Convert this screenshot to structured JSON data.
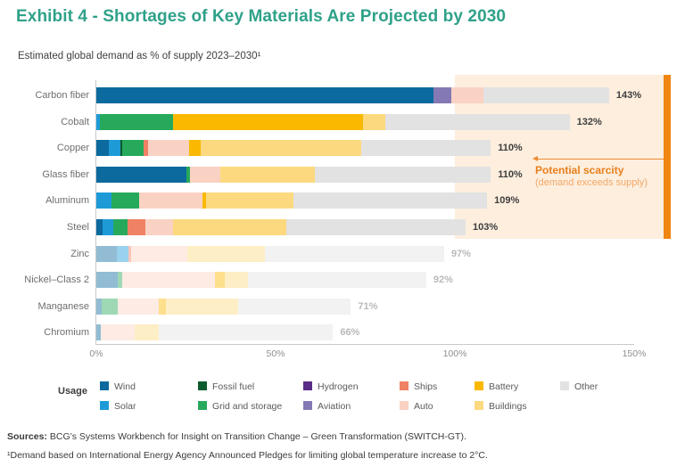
{
  "header": {
    "title": "Exhibit 4 - Shortages of Key Materials Are Projected by 2030",
    "subtitle": "Estimated global demand as % of supply 2023–2030¹"
  },
  "chart_data": {
    "type": "bar",
    "variant": "horizontal-stacked",
    "title": "Exhibit 4 - Shortages of Key Materials Are Projected by 2030",
    "subtitle": "Estimated global demand as % of supply 2023–2030¹",
    "xlabel": "",
    "ylabel": "",
    "xlim": [
      0,
      150
    ],
    "xticks": [
      "0%",
      "50%",
      "100%",
      "150%"
    ],
    "xtick_values": [
      0,
      50,
      100,
      150
    ],
    "scarcity_threshold": 100,
    "legend_position": "bottom",
    "usage_colors": {
      "Wind": "#0c6a9e",
      "Solar": "#1e9bd7",
      "Fossil fuel": "#0a5c2d",
      "Grid and storage": "#27a95c",
      "Hydrogen": "#5b2d87",
      "Aviation": "#8579b5",
      "Ships": "#ef8165",
      "Auto": "#fad2c3",
      "Battery": "#fab900",
      "Buildings": "#fcd97f",
      "Other": "#e2e2e2"
    },
    "bars": [
      {
        "material": "Carbon fiber",
        "total": 143,
        "total_label": "143%",
        "scarcity": true,
        "muted": false,
        "segments": [
          {
            "usage": "Wind",
            "value": 94
          },
          {
            "usage": "Aviation",
            "value": 5
          },
          {
            "usage": "Auto",
            "value": 9
          },
          {
            "usage": "Other",
            "value": 35
          }
        ]
      },
      {
        "material": "Cobalt",
        "total": 132,
        "total_label": "132%",
        "scarcity": true,
        "muted": false,
        "segments": [
          {
            "usage": "Solar",
            "value": 1
          },
          {
            "usage": "Grid and storage",
            "value": 20.5
          },
          {
            "usage": "Battery",
            "value": 53
          },
          {
            "usage": "Buildings",
            "value": 6
          },
          {
            "usage": "Other",
            "value": 51.5
          }
        ]
      },
      {
        "material": "Copper",
        "total": 110,
        "total_label": "110%",
        "scarcity": true,
        "muted": false,
        "segments": [
          {
            "usage": "Wind",
            "value": 3.5
          },
          {
            "usage": "Solar",
            "value": 3.2
          },
          {
            "usage": "Fossil fuel",
            "value": 0.5
          },
          {
            "usage": "Grid and storage",
            "value": 6
          },
          {
            "usage": "Ships",
            "value": 1.3
          },
          {
            "usage": "Auto",
            "value": 11.5
          },
          {
            "usage": "Battery",
            "value": 3
          },
          {
            "usage": "Buildings",
            "value": 45
          },
          {
            "usage": "Other",
            "value": 36
          }
        ]
      },
      {
        "material": "Glass fiber",
        "total": 110,
        "total_label": "110%",
        "scarcity": true,
        "muted": false,
        "segments": [
          {
            "usage": "Wind",
            "value": 25
          },
          {
            "usage": "Grid and storage",
            "value": 1
          },
          {
            "usage": "Auto",
            "value": 8.7
          },
          {
            "usage": "Buildings",
            "value": 26.3
          },
          {
            "usage": "Other",
            "value": 49
          }
        ]
      },
      {
        "material": "Aluminum",
        "total": 109,
        "total_label": "109%",
        "scarcity": true,
        "muted": false,
        "segments": [
          {
            "usage": "Solar",
            "value": 4.3
          },
          {
            "usage": "Grid and storage",
            "value": 7.7
          },
          {
            "usage": "Auto",
            "value": 17.5
          },
          {
            "usage": "Battery",
            "value": 1.2
          },
          {
            "usage": "Buildings",
            "value": 24.3
          },
          {
            "usage": "Other",
            "value": 54
          }
        ]
      },
      {
        "material": "Steel",
        "total": 103,
        "total_label": "103%",
        "scarcity": true,
        "muted": false,
        "segments": [
          {
            "usage": "Wind",
            "value": 1.7
          },
          {
            "usage": "Solar",
            "value": 3
          },
          {
            "usage": "Grid and storage",
            "value": 4
          },
          {
            "usage": "Ships",
            "value": 5
          },
          {
            "usage": "Auto",
            "value": 7.8
          },
          {
            "usage": "Buildings",
            "value": 31.5
          },
          {
            "usage": "Other",
            "value": 50
          }
        ]
      },
      {
        "material": "Zinc",
        "total": 97,
        "total_label": "97%",
        "scarcity": false,
        "muted": true,
        "segments": [
          {
            "usage": "Wind",
            "value": 5.7
          },
          {
            "usage": "Solar",
            "value": 3.2
          },
          {
            "usage": "Ships",
            "value": 0.8
          },
          {
            "usage": "Auto",
            "value": 15.6
          },
          {
            "usage": "Buildings",
            "value": 21.7
          },
          {
            "usage": "Other",
            "value": 50
          }
        ]
      },
      {
        "material": "Nickel–Class 2",
        "total": 92,
        "total_label": "92%",
        "scarcity": false,
        "muted": true,
        "segments": [
          {
            "usage": "Wind",
            "value": 6
          },
          {
            "usage": "Grid and storage",
            "value": 1.2
          },
          {
            "usage": "Auto",
            "value": 26
          },
          {
            "usage": "Battery",
            "value": 2.7
          },
          {
            "usage": "Buildings",
            "value": 6.5
          },
          {
            "usage": "Other",
            "value": 49.6
          }
        ]
      },
      {
        "material": "Manganese",
        "total": 71,
        "total_label": "71%",
        "scarcity": false,
        "muted": true,
        "segments": [
          {
            "usage": "Wind",
            "value": 1.5
          },
          {
            "usage": "Grid and storage",
            "value": 4.5
          },
          {
            "usage": "Auto",
            "value": 11.5
          },
          {
            "usage": "Battery",
            "value": 2
          },
          {
            "usage": "Buildings",
            "value": 20
          },
          {
            "usage": "Other",
            "value": 31.5
          }
        ]
      },
      {
        "material": "Chromium",
        "total": 66,
        "total_label": "66%",
        "scarcity": false,
        "muted": true,
        "segments": [
          {
            "usage": "Wind",
            "value": 1.2
          },
          {
            "usage": "Auto",
            "value": 9.5
          },
          {
            "usage": "Buildings",
            "value": 6.7
          },
          {
            "usage": "Other",
            "value": 48.6
          }
        ]
      }
    ],
    "annotation": {
      "title": "Potential scarcity",
      "subtitle": "(demand exceeds supply)",
      "accent_color": "#e87f1c",
      "band_color": "#fdeede",
      "edge_color": "#f08511"
    },
    "legend": {
      "label": "Usage",
      "columns": [
        [
          "Wind",
          "Solar"
        ],
        [
          "Fossil fuel",
          "Grid and storage"
        ],
        [
          "Hydrogen",
          "Aviation"
        ],
        [
          "Ships",
          "Auto"
        ],
        [
          "Battery",
          "Buildings"
        ],
        [
          "Other"
        ]
      ]
    }
  },
  "footer": {
    "sources_prefix": "Sources:",
    "sources_text": " BCG’s Systems Workbench for Insight on Transition Change – Green Transformation (SWITCH-GT).",
    "footnote": "¹Demand based on International Energy Agency Announced Pledges for limiting global temperature increase to 2°C."
  }
}
